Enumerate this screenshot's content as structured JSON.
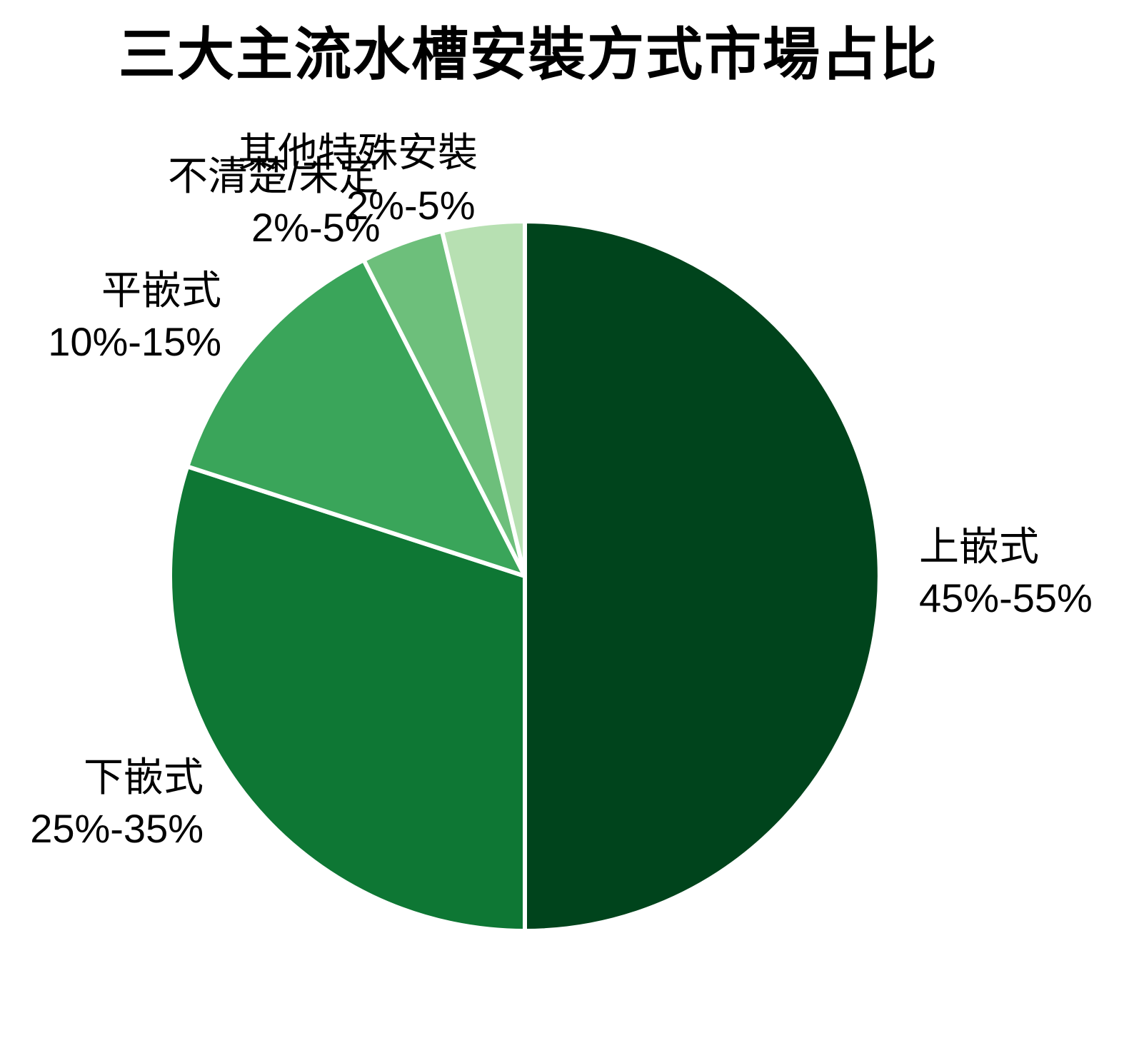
{
  "chart_data": {
    "type": "pie",
    "title": "三大主流水槽安裝方式市場占比",
    "direction": "clockwise",
    "start_angle": "12-oclock",
    "legend_position": "none",
    "background": "#ffffff",
    "text_color": "#000000",
    "slice_border_color": "#ffffff",
    "label_style": "outside labels: category name + percent range",
    "slices": [
      {
        "id": "top-mount",
        "label": "上嵌式",
        "range": "45%-55%",
        "value_pct": 50,
        "color": "#00441c"
      },
      {
        "id": "under-mount",
        "label": "下嵌式",
        "range": "25%-35%",
        "value_pct": 30,
        "color": "#0e7734"
      },
      {
        "id": "flush-mount",
        "label": "平嵌式",
        "range": "10%-15%",
        "value_pct": 12.5,
        "color": "#3aa55a"
      },
      {
        "id": "undecided",
        "label": "不清楚/未定",
        "range": "2%-5%",
        "value_pct": 3.75,
        "color": "#6dbf7b"
      },
      {
        "id": "other-special",
        "label": "其他特殊安裝",
        "range": "2%-5%",
        "value_pct": 3.75,
        "color": "#b7e0b2"
      }
    ]
  }
}
